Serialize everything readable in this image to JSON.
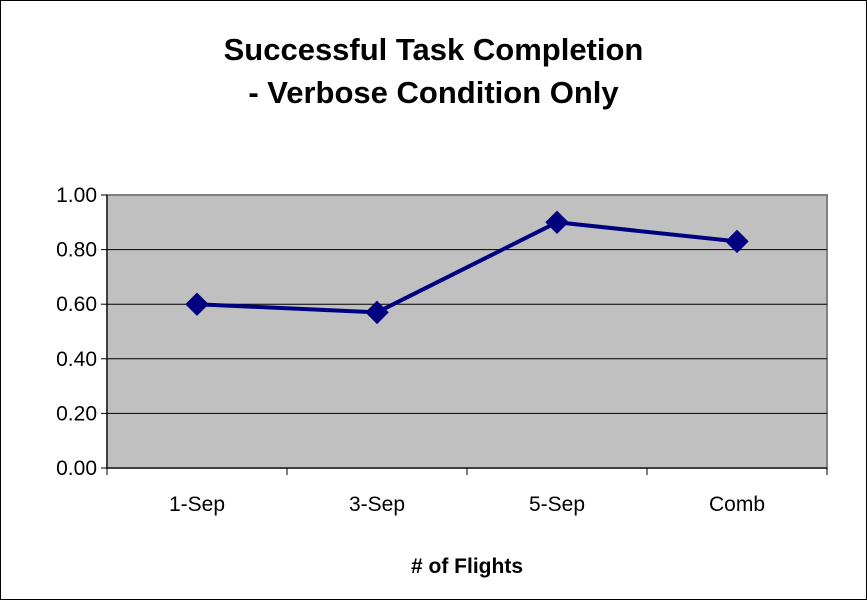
{
  "chart_data": {
    "type": "line",
    "title_line1": "Successful Task Completion",
    "title_line2": "- Verbose Condition Only",
    "xlabel": "# of Flights",
    "ylabel": "",
    "categories": [
      "1-Sep",
      "3-Sep",
      "5-Sep",
      "Comb"
    ],
    "series": [
      {
        "values": [
          0.6,
          0.57,
          0.9,
          0.83
        ],
        "color": "#000080"
      }
    ],
    "ylim": [
      0,
      1
    ],
    "yticks": [
      "0.00",
      "0.20",
      "0.40",
      "0.60",
      "0.80",
      "1.00"
    ],
    "grid": true,
    "plot_background": "#c0c0c0",
    "legend": "none"
  }
}
